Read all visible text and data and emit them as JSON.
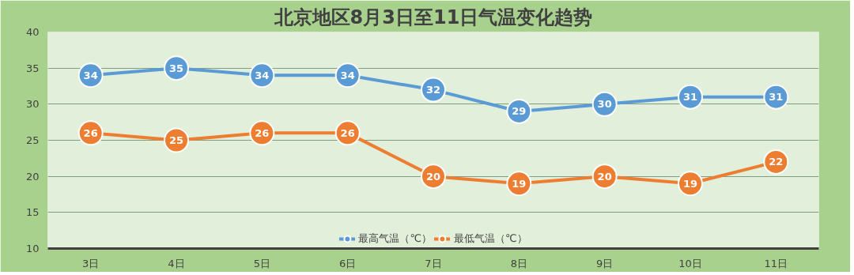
{
  "chart_data": {
    "type": "line",
    "title": "北京地区8月3日至11日气温变化趋势",
    "categories": [
      "3日",
      "4日",
      "5日",
      "6日",
      "7日",
      "8日",
      "9日",
      "10日",
      "11日"
    ],
    "series": [
      {
        "name": "最高气温（℃）",
        "color": "#5b9bd5",
        "values": [
          34,
          35,
          34,
          34,
          32,
          29,
          30,
          31,
          31
        ]
      },
      {
        "name": "最低气温（℃）",
        "color": "#ed7d31",
        "values": [
          26,
          25,
          26,
          26,
          20,
          19,
          20,
          19,
          22
        ]
      }
    ],
    "ylim": [
      10,
      40
    ],
    "yticks": [
      10,
      15,
      20,
      25,
      30,
      35,
      40
    ],
    "grid": "y",
    "legend": "bottom",
    "marker": "circle",
    "line_style": "solid",
    "data_labels": true
  }
}
